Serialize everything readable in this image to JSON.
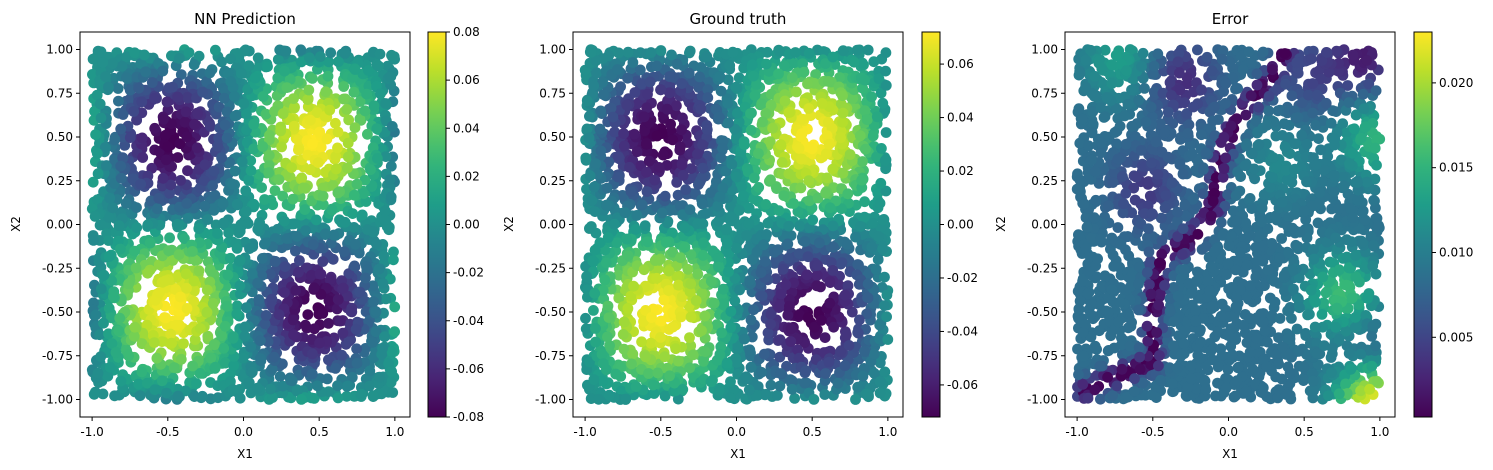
{
  "chart_data": [
    {
      "type": "scatter",
      "title": "NN Prediction",
      "xlabel": "X1",
      "ylabel": "X2",
      "xlim": [
        -1.08,
        1.1
      ],
      "ylim": [
        -1.1,
        1.1
      ],
      "xticks": [
        "-1.0",
        "-0.5",
        "0.0",
        "0.5",
        "1.0"
      ],
      "xtick_values": [
        -1.0,
        -0.5,
        0.0,
        0.5,
        1.0
      ],
      "yticks": [
        "-1.00",
        "-0.75",
        "-0.50",
        "-0.25",
        "0.00",
        "0.25",
        "0.50",
        "0.75",
        "1.00"
      ],
      "ytick_values": [
        -1.0,
        -0.75,
        -0.5,
        -0.25,
        0.0,
        0.25,
        0.5,
        0.75,
        1.0
      ],
      "colormap": "viridis",
      "colorbar": {
        "range": [
          -0.08,
          0.08
        ],
        "ticks": [
          "-0.08",
          "-0.06",
          "-0.04",
          "-0.02",
          "0.00",
          "0.02",
          "0.04",
          "0.06",
          "0.08"
        ],
        "tick_values": [
          -0.08,
          -0.06,
          -0.04,
          -0.02,
          0.0,
          0.02,
          0.04,
          0.06,
          0.08
        ]
      },
      "field": {
        "domain": [
          -1,
          1
        ],
        "description_key": "sinusoidal",
        "amplitude": 0.08,
        "max_at": [
          [
            0.47,
            0.48
          ],
          [
            -0.47,
            -0.48
          ]
        ],
        "min_at": [
          [
            -0.47,
            0.48
          ],
          [
            0.47,
            -0.48
          ]
        ]
      }
    },
    {
      "type": "scatter",
      "title": "Ground truth",
      "xlabel": "X1",
      "ylabel": "X2",
      "xlim": [
        -1.08,
        1.1
      ],
      "ylim": [
        -1.1,
        1.1
      ],
      "xticks": [
        "-1.0",
        "-0.5",
        "0.0",
        "0.5",
        "1.0"
      ],
      "xtick_values": [
        -1.0,
        -0.5,
        0.0,
        0.5,
        1.0
      ],
      "yticks": [
        "-1.00",
        "-0.75",
        "-0.50",
        "-0.25",
        "0.00",
        "0.25",
        "0.50",
        "0.75",
        "1.00"
      ],
      "ytick_values": [
        -1.0,
        -0.75,
        -0.5,
        -0.25,
        0.0,
        0.25,
        0.5,
        0.75,
        1.0
      ],
      "colormap": "viridis",
      "colorbar": {
        "range": [
          -0.072,
          0.072
        ],
        "ticks": [
          "-0.06",
          "-0.04",
          "-0.02",
          "0.00",
          "0.02",
          "0.04",
          "0.06"
        ],
        "tick_values": [
          -0.06,
          -0.04,
          -0.02,
          0.0,
          0.02,
          0.04,
          0.06
        ]
      },
      "field": {
        "domain": [
          -1,
          1
        ],
        "description_key": "sinusoidal",
        "amplitude": 0.072,
        "max_at": [
          [
            0.5,
            0.5
          ],
          [
            -0.5,
            -0.5
          ]
        ],
        "min_at": [
          [
            -0.5,
            0.5
          ],
          [
            0.5,
            -0.5
          ]
        ]
      }
    },
    {
      "type": "scatter",
      "title": "Error",
      "xlabel": "X1",
      "ylabel": "X2",
      "xlim": [
        -1.08,
        1.1
      ],
      "ylim": [
        -1.1,
        1.1
      ],
      "xticks": [
        "-1.0",
        "-0.5",
        "0.0",
        "0.5",
        "1.0"
      ],
      "xtick_values": [
        -1.0,
        -0.5,
        0.0,
        0.5,
        1.0
      ],
      "yticks": [
        "-1.00",
        "-0.75",
        "-0.50",
        "-0.25",
        "0.00",
        "0.25",
        "0.50",
        "0.75",
        "1.00"
      ],
      "ytick_values": [
        -1.0,
        -0.75,
        -0.5,
        -0.25,
        0.0,
        0.25,
        0.5,
        0.75,
        1.0
      ],
      "colormap": "viridis",
      "colorbar": {
        "range": [
          0.0003,
          0.023
        ],
        "ticks": [
          "0.005",
          "0.010",
          "0.015",
          "0.020"
        ],
        "tick_values": [
          0.005,
          0.01,
          0.015,
          0.02
        ]
      },
      "field": {
        "domain": [
          -1,
          1
        ],
        "description_key": "error",
        "valley_path": [
          [
            0.38,
            1.0
          ],
          [
            0.3,
            0.85
          ],
          [
            0.1,
            0.65
          ],
          [
            -0.05,
            0.4
          ],
          [
            -0.1,
            0.1
          ],
          [
            -0.2,
            -0.05
          ],
          [
            -0.45,
            -0.2
          ],
          [
            -0.5,
            -0.5
          ],
          [
            -0.5,
            -0.78
          ],
          [
            -0.7,
            -0.85
          ],
          [
            -0.95,
            -0.95
          ]
        ],
        "peaks": [
          {
            "at": [
              0.75,
              -0.4
            ],
            "value": 0.016
          },
          {
            "at": [
              0.95,
              -1.0
            ],
            "value": 0.023
          },
          {
            "at": [
              0.97,
              0.5
            ],
            "value": 0.015
          },
          {
            "at": [
              -0.72,
              0.95
            ],
            "value": 0.013
          },
          {
            "at": [
              0.35,
              0.35
            ],
            "value": 0.011
          }
        ],
        "troughs": [
          {
            "at": [
              -0.3,
              0.82
            ],
            "value": 0.003
          },
          {
            "at": [
              -0.55,
              0.2
            ],
            "value": 0.004
          },
          {
            "at": [
              0.55,
              0.85
            ],
            "value": 0.005
          },
          {
            "at": [
              0.9,
              0.95
            ],
            "value": 0.002
          },
          {
            "at": [
              0.92,
              -0.75
            ],
            "value": 0.005
          }
        ],
        "base_value": 0.0085
      }
    }
  ]
}
